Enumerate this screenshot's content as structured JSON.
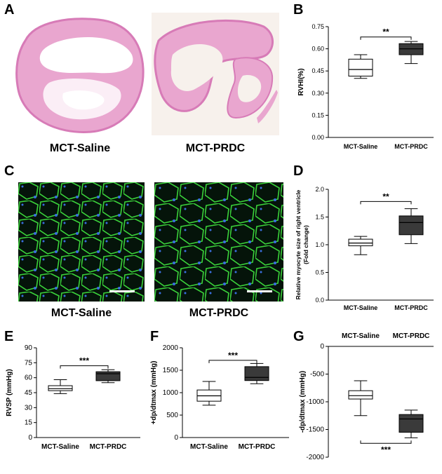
{
  "panels": {
    "A": {
      "letter": "A",
      "captions": [
        "MCT-Saline",
        "MCT-PRDC"
      ],
      "image_kind": "H&E stained heart cross-section",
      "colors": {
        "tissue": "#e9a6cf",
        "tissue_dark": "#d77bb7",
        "background": "#f7f1ec"
      }
    },
    "C": {
      "letter": "C",
      "captions": [
        "MCT-Saline",
        "MCT-PRDC"
      ],
      "image_kind": "fluorescence micrograph of cardiomyocytes",
      "colors": {
        "membrane": "#3ad23a",
        "nuclei": "#3a6fe0",
        "background": "#05140a"
      }
    },
    "B": {
      "letter": "B"
    },
    "D": {
      "letter": "D"
    },
    "E": {
      "letter": "E"
    },
    "F": {
      "letter": "F"
    },
    "G": {
      "letter": "G"
    }
  },
  "chart_data": [
    {
      "id": "B",
      "type": "box",
      "categories": [
        "MCT-Saline",
        "MCT-PRDC"
      ],
      "ylabel": "RVHI(%)",
      "ylim": [
        0,
        0.75
      ],
      "yticks": [
        "0.00",
        "0.15",
        "0.30",
        "0.45",
        "0.60",
        "0.75"
      ],
      "boxes": [
        {
          "min": 0.4,
          "q1": 0.415,
          "median": 0.46,
          "q3": 0.53,
          "max": 0.56,
          "fill": "#ffffff"
        },
        {
          "min": 0.5,
          "q1": 0.56,
          "median": 0.6,
          "q3": 0.635,
          "max": 0.65,
          "fill": "#3a3a3a"
        }
      ],
      "significance": "**",
      "sig_y": 0.68
    },
    {
      "id": "D",
      "type": "box",
      "categories": [
        "MCT-Saline",
        "MCT-PRDC"
      ],
      "ylabel": [
        "Relative myocyte size of right ventricle",
        "(Fold change)"
      ],
      "ylim": [
        0,
        2.0
      ],
      "yticks": [
        "0.0",
        "0.5",
        "1.0",
        "1.5",
        "2.0"
      ],
      "boxes": [
        {
          "min": 0.82,
          "q1": 0.98,
          "median": 1.03,
          "q3": 1.1,
          "max": 1.15,
          "fill": "#ffffff"
        },
        {
          "min": 1.02,
          "q1": 1.18,
          "median": 1.4,
          "q3": 1.52,
          "max": 1.65,
          "fill": "#3a3a3a"
        }
      ],
      "significance": "**",
      "sig_y": 1.78
    },
    {
      "id": "E",
      "type": "box",
      "categories": [
        "MCT-Saline",
        "MCT-PRDC"
      ],
      "ylabel": "RVSP (mmHg)",
      "ylim": [
        0,
        90
      ],
      "yticks": [
        "0",
        "15",
        "30",
        "45",
        "60",
        "75",
        "90"
      ],
      "boxes": [
        {
          "min": 44,
          "q1": 47,
          "median": 49,
          "q3": 52,
          "max": 58,
          "fill": "#ffffff"
        },
        {
          "min": 55,
          "q1": 57,
          "median": 64,
          "q3": 66,
          "max": 68,
          "fill": "#3a3a3a"
        }
      ],
      "significance": "***",
      "sig_y": 72
    },
    {
      "id": "F",
      "type": "box",
      "categories": [
        "MCT-Saline",
        "MCT-PRDC"
      ],
      "ylabel": "+dp/dtmax (mmHg)",
      "ylim": [
        0,
        2000
      ],
      "yticks": [
        "0",
        "500",
        "1000",
        "1500",
        "2000"
      ],
      "boxes": [
        {
          "min": 720,
          "q1": 810,
          "median": 930,
          "q3": 1060,
          "max": 1250,
          "fill": "#ffffff"
        },
        {
          "min": 1200,
          "q1": 1270,
          "median": 1340,
          "q3": 1580,
          "max": 1650,
          "fill": "#3a3a3a"
        }
      ],
      "significance": "***",
      "sig_y": 1720
    },
    {
      "id": "G",
      "type": "box",
      "categories": [
        "MCT-Saline",
        "MCT-PRDC"
      ],
      "category_position": "top",
      "ylabel": "-dp/dtmax (mmHg)",
      "ylim": [
        -2000,
        0
      ],
      "yticks": [
        "0",
        "-500",
        "-1000",
        "-1500",
        "-2000"
      ],
      "boxes": [
        {
          "min": -1250,
          "q1": -950,
          "median": -890,
          "q3": -800,
          "max": -620,
          "fill": "#ffffff"
        },
        {
          "min": -1650,
          "q1": -1550,
          "median": -1310,
          "q3": -1230,
          "max": -1150,
          "fill": "#3a3a3a"
        }
      ],
      "significance": "***",
      "sig_y": -1750
    }
  ]
}
